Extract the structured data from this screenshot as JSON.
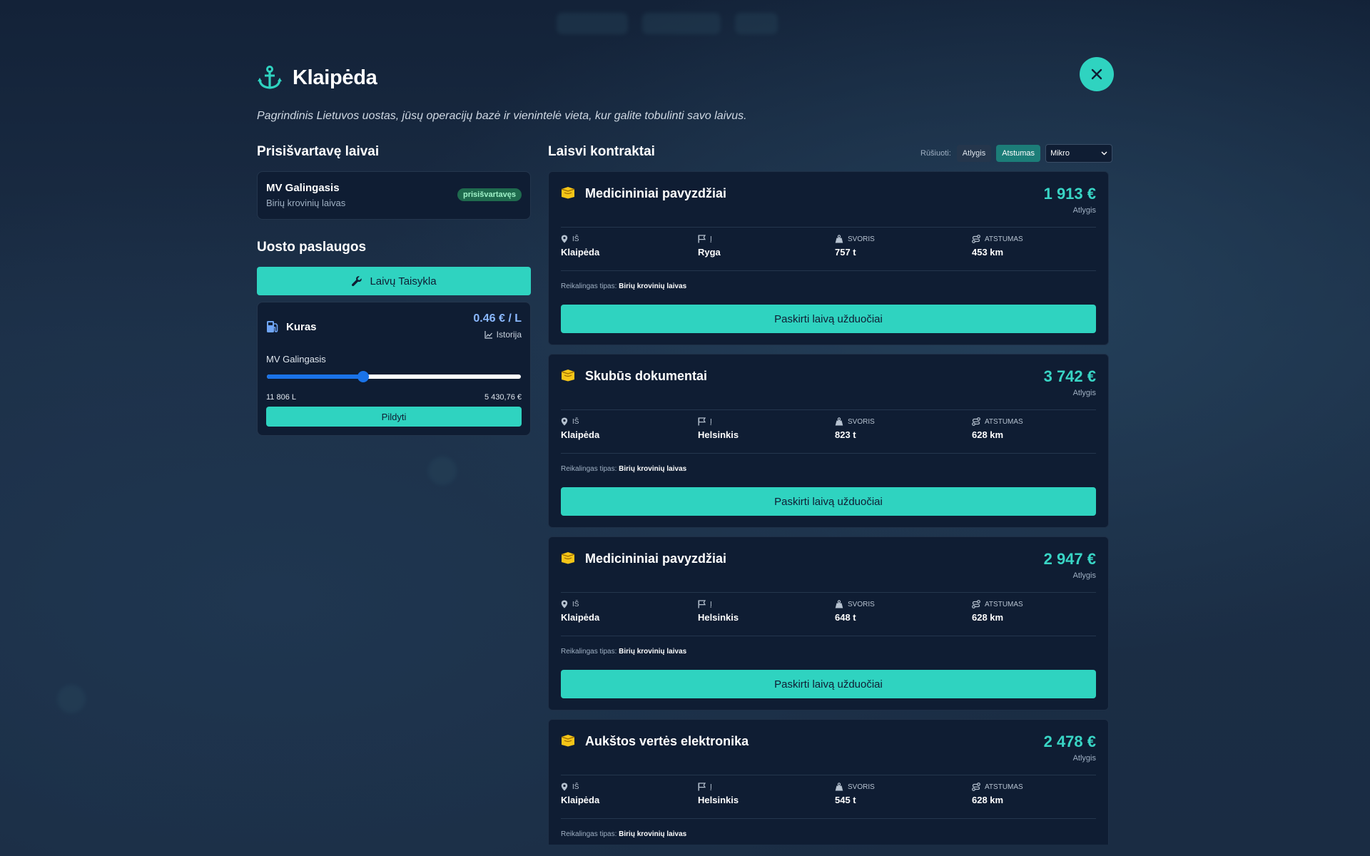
{
  "port": {
    "name": "Klaipėda",
    "description": "Pagrindinis Lietuvos uostas, jūsų operacijų bazė ir vienintelė vieta, kur galite tobulinti savo laivus."
  },
  "docked_ships": {
    "heading": "Prisišvartavę laivai",
    "ships": [
      {
        "name": "MV Galingasis",
        "type": "Birių krovinių laivas",
        "status": "prisišvartavęs"
      }
    ]
  },
  "port_services": {
    "heading": "Uosto paslaugos",
    "repair_label": "Laivų Taisykla",
    "fuel": {
      "title": "Kuras",
      "price": "0.46 € / L",
      "history_label": "Istorija",
      "ship": "MV Galingasis",
      "slider_fraction": 0.38,
      "liters": "11 806 L",
      "cost": "5 430,76 €",
      "fill_label": "Pildyti"
    }
  },
  "contracts": {
    "heading": "Laisvi kontraktai",
    "sort_label": "Rūšiuoti:",
    "sort_options": [
      "Atlygis",
      "Atstumas"
    ],
    "active_sort": "Atstumas",
    "size_select": "Mikro",
    "column_labels": {
      "from": "IŠ",
      "to": "Į",
      "weight": "SVORIS",
      "distance": "ATSTUMAS"
    },
    "reward_label": "Atlygis",
    "required_type_label": "Reikalingas tipas:",
    "assign_label": "Paskirti laivą užduočiai",
    "items": [
      {
        "name": "Medicininiai pavyzdžiai",
        "reward": "1 913 €",
        "from": "Klaipėda",
        "to": "Ryga",
        "weight": "757 t",
        "distance": "453 km",
        "required_type": "Birių krovinių laivas"
      },
      {
        "name": "Skubūs dokumentai",
        "reward": "3 742 €",
        "from": "Klaipėda",
        "to": "Helsinkis",
        "weight": "823 t",
        "distance": "628 km",
        "required_type": "Birių krovinių laivas"
      },
      {
        "name": "Medicininiai pavyzdžiai",
        "reward": "2 947 €",
        "from": "Klaipėda",
        "to": "Helsinkis",
        "weight": "648 t",
        "distance": "628 km",
        "required_type": "Birių krovinių laivas"
      },
      {
        "name": "Aukštos vertės elektronika",
        "reward": "2 478 €",
        "from": "Klaipėda",
        "to": "Helsinkis",
        "weight": "545 t",
        "distance": "628 km",
        "required_type": "Birių krovinių laivas"
      }
    ]
  },
  "icons": {
    "title": "anchor-icon",
    "close": "close-icon",
    "repair": "wrench-icon",
    "fuel": "fuel-pump-icon",
    "history": "chart-line-icon",
    "contract": "box-icon",
    "from": "map-pin-icon",
    "to": "flag-icon",
    "weight": "weight-icon",
    "distance": "route-icon"
  },
  "colors": {
    "accent": "#2fd3c0",
    "reward": "#39d5c5",
    "price": "#8ab8ff",
    "background": "#1a2b40",
    "card": "#0f1d33",
    "badge": "#1f6b4e",
    "slider": "#1a73e8",
    "box_icon": "#f5c518"
  }
}
